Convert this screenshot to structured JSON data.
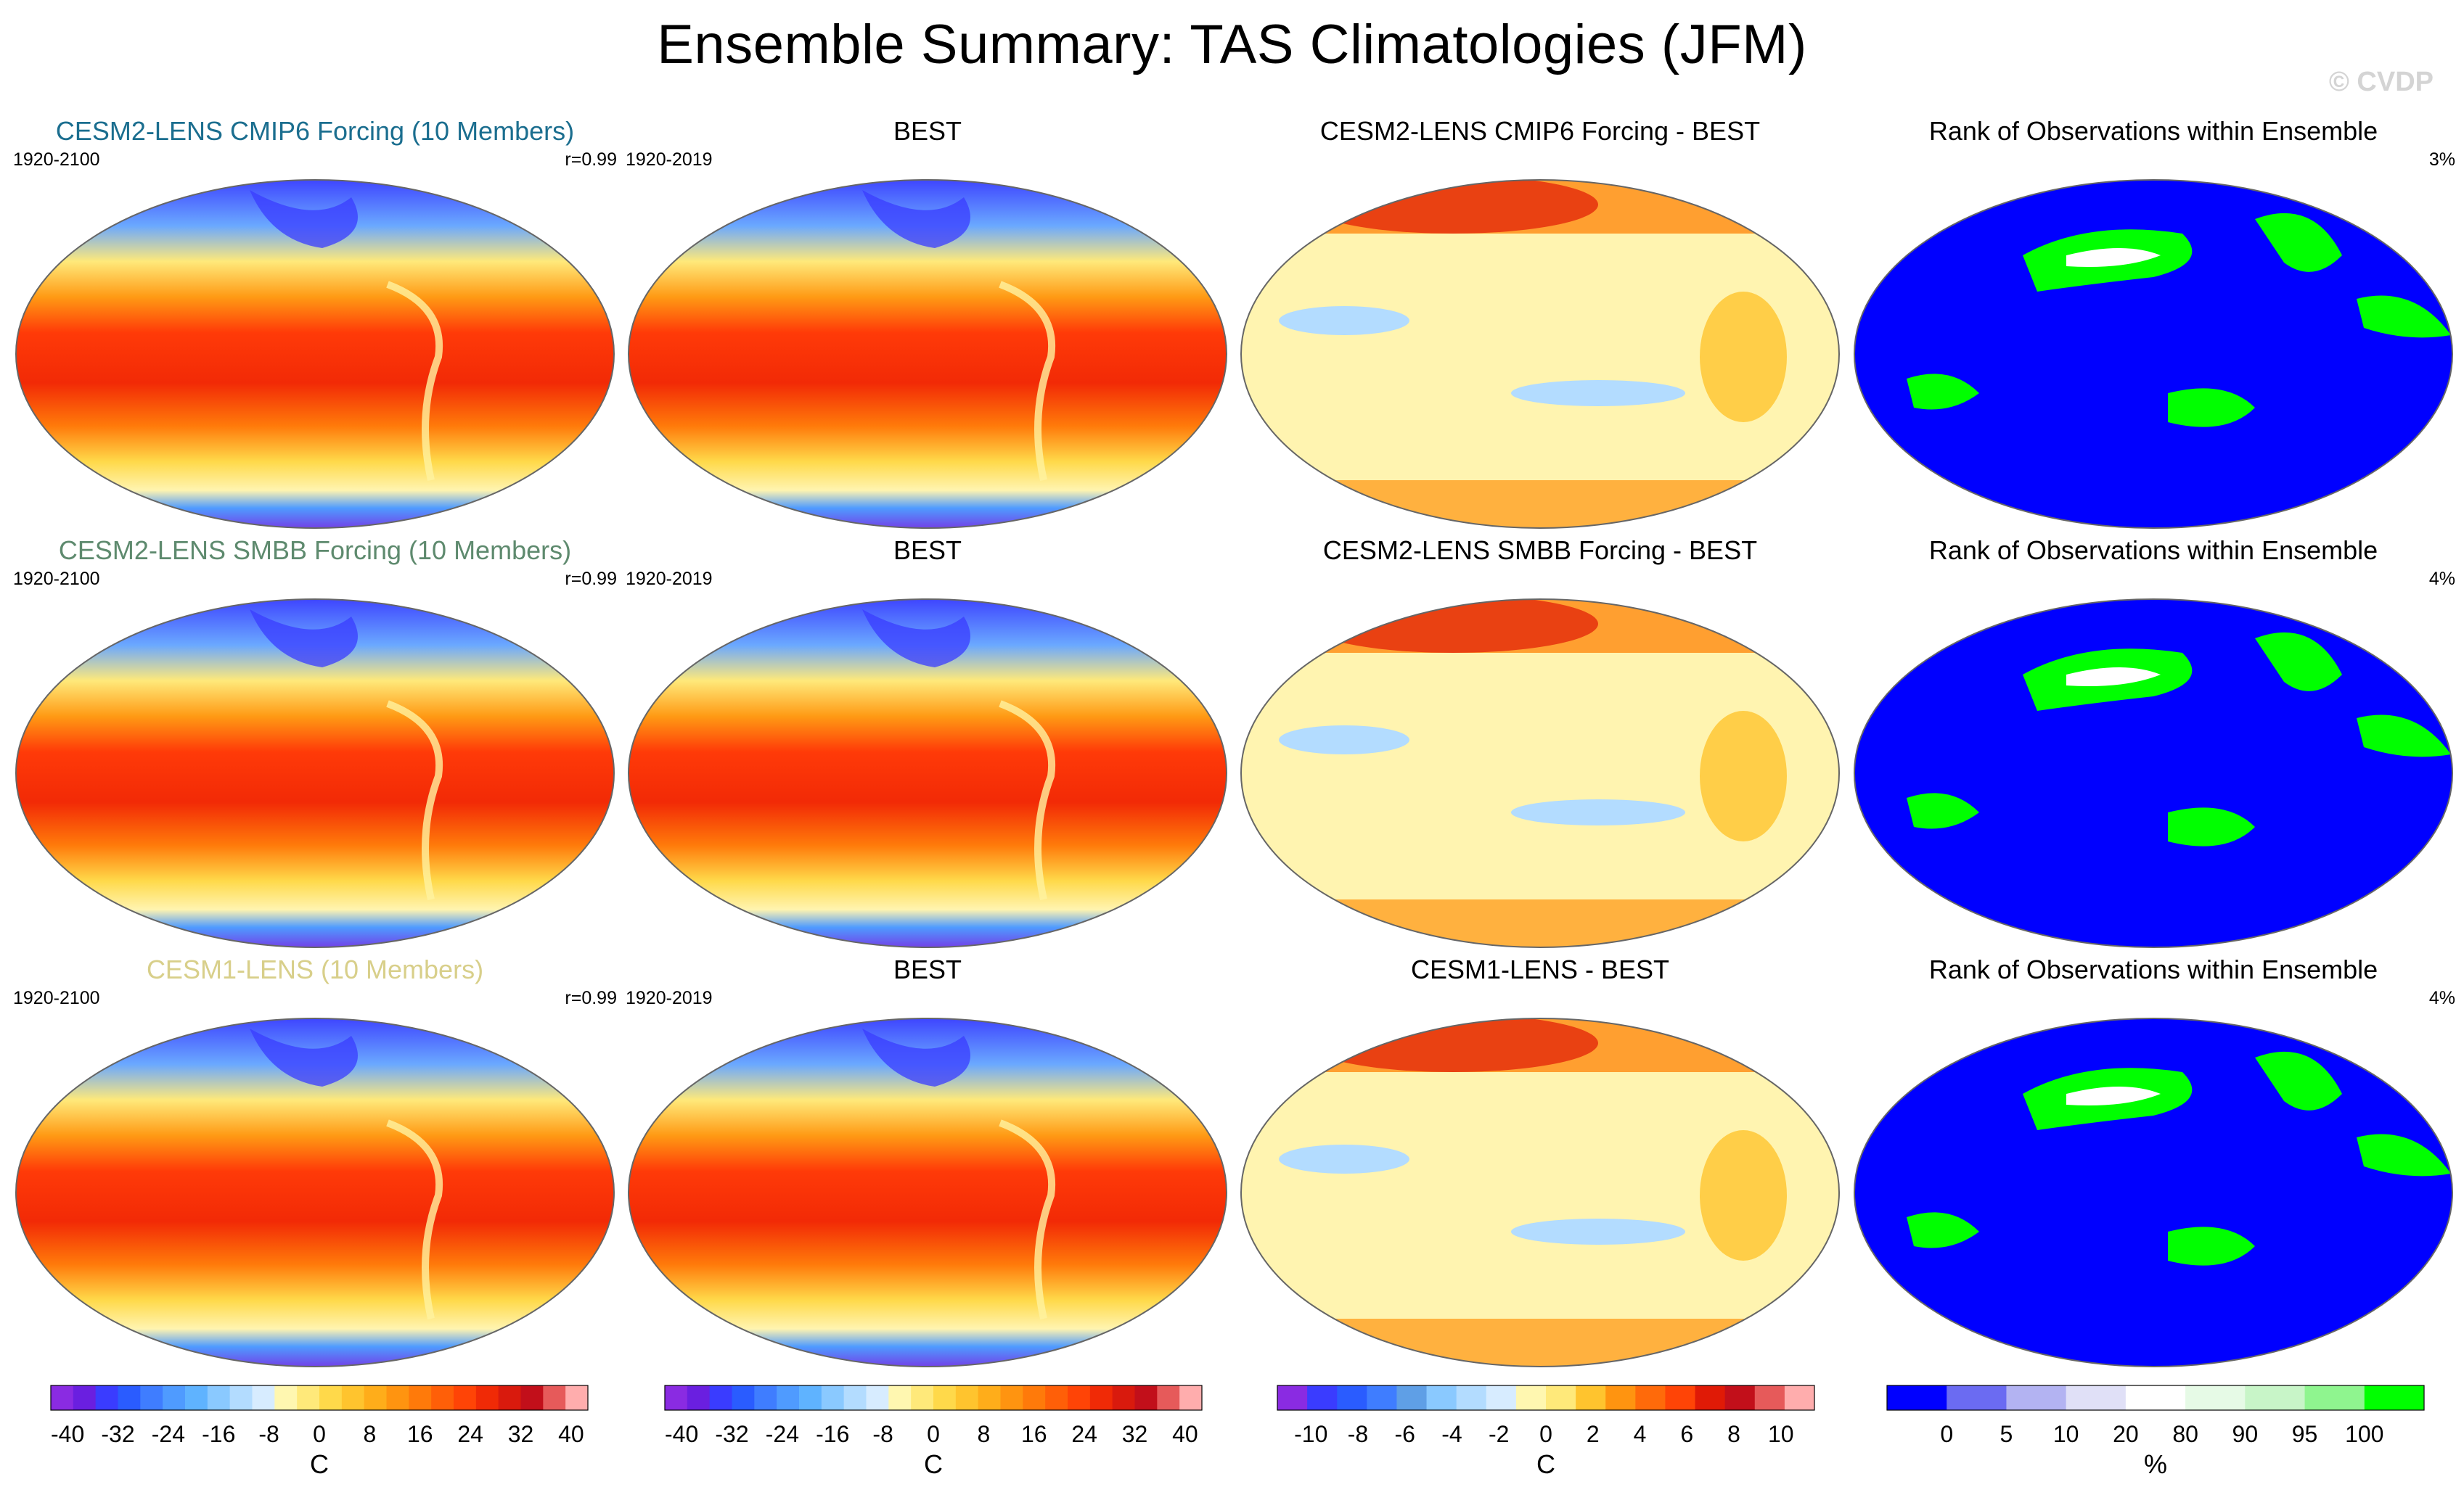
{
  "title": "Ensemble Summary: TAS Climatologies (JFM)",
  "watermark": "© CVDP",
  "rows": [
    {
      "panels": [
        {
          "title": "CESM2-LENS CMIP6 Forcing (10 Members)",
          "title_color": "#1b6e8f",
          "ldate": "1920-2100",
          "rstat": "r=0.99",
          "kind": "clim"
        },
        {
          "title": "BEST",
          "title_color": "#000000",
          "ldate": "1920-2019",
          "rstat": "",
          "kind": "clim"
        },
        {
          "title": "CESM2-LENS CMIP6 Forcing - BEST",
          "title_color": "#000000",
          "ldate": "",
          "rstat": "",
          "kind": "diff"
        },
        {
          "title": "Rank of Observations within Ensemble",
          "title_color": "#000000",
          "ldate": "",
          "rstat": "3%",
          "kind": "rank"
        }
      ]
    },
    {
      "panels": [
        {
          "title": "CESM2-LENS SMBB Forcing (10 Members)",
          "title_color": "#5e8a6e",
          "ldate": "1920-2100",
          "rstat": "r=0.99",
          "kind": "clim"
        },
        {
          "title": "BEST",
          "title_color": "#000000",
          "ldate": "1920-2019",
          "rstat": "",
          "kind": "clim"
        },
        {
          "title": "CESM2-LENS SMBB Forcing - BEST",
          "title_color": "#000000",
          "ldate": "",
          "rstat": "",
          "kind": "diff"
        },
        {
          "title": "Rank of Observations within Ensemble",
          "title_color": "#000000",
          "ldate": "",
          "rstat": "4%",
          "kind": "rank"
        }
      ]
    },
    {
      "panels": [
        {
          "title": "CESM1-LENS (10 Members)",
          "title_color": "#d8cf8a",
          "ldate": "1920-2100",
          "rstat": "r=0.99",
          "kind": "clim"
        },
        {
          "title": "BEST",
          "title_color": "#000000",
          "ldate": "1920-2019",
          "rstat": "",
          "kind": "clim"
        },
        {
          "title": "CESM1-LENS - BEST",
          "title_color": "#000000",
          "ldate": "",
          "rstat": "",
          "kind": "diff"
        },
        {
          "title": "Rank of Observations within Ensemble",
          "title_color": "#000000",
          "ldate": "",
          "rstat": "4%",
          "kind": "rank"
        }
      ]
    }
  ],
  "colorbars": [
    {
      "unit": "C",
      "colors": [
        "#8a2be2",
        "#6a1fe0",
        "#3a3cff",
        "#2a5cff",
        "#3f7dff",
        "#4f9bff",
        "#5fb3ff",
        "#8ac9ff",
        "#b3dcff",
        "#d7ecff",
        "#fff7b0",
        "#ffe97a",
        "#ffd94a",
        "#ffc42e",
        "#ffad1a",
        "#ff9410",
        "#ff7a0a",
        "#ff5f08",
        "#ff4406",
        "#f02a06",
        "#d91a0d",
        "#c20f1a",
        "#e65a5a",
        "#ffadad"
      ],
      "tick_labels": [
        "-40",
        "-32",
        "-24",
        "-16",
        "-8",
        "0",
        "8",
        "16",
        "24",
        "32",
        "40"
      ],
      "tick_positions": [
        1,
        4,
        7,
        10,
        13,
        16,
        19,
        22,
        25,
        28,
        31
      ]
    },
    {
      "unit": "C",
      "colors": [
        "#8a2be2",
        "#6a1fe0",
        "#3a3cff",
        "#2a5cff",
        "#3f7dff",
        "#4f9bff",
        "#5fb3ff",
        "#8ac9ff",
        "#b3dcff",
        "#d7ecff",
        "#fff7b0",
        "#ffe97a",
        "#ffd94a",
        "#ffc42e",
        "#ffad1a",
        "#ff9410",
        "#ff7a0a",
        "#ff5f08",
        "#ff4406",
        "#f02a06",
        "#d91a0d",
        "#c20f1a",
        "#e65a5a",
        "#ffadad"
      ],
      "tick_labels": [
        "-40",
        "-32",
        "-24",
        "-16",
        "-8",
        "0",
        "8",
        "16",
        "24",
        "32",
        "40"
      ],
      "tick_positions": [
        1,
        4,
        7,
        10,
        13,
        16,
        19,
        22,
        25,
        28,
        31
      ]
    },
    {
      "unit": "C",
      "colors": [
        "#8a2be2",
        "#3a3cff",
        "#2a5cff",
        "#3f7dff",
        "#5f9fe6",
        "#8ac9ff",
        "#b3dcff",
        "#d7ecff",
        "#fff7b0",
        "#ffe97a",
        "#ffc42e",
        "#ff9410",
        "#ff6a0a",
        "#ff4406",
        "#e01a06",
        "#c20f1a",
        "#e65a5a",
        "#ffadad"
      ],
      "tick_labels": [
        "-10",
        "-8",
        "-6",
        "-4",
        "-2",
        "0",
        "2",
        "4",
        "6",
        "8",
        "10"
      ],
      "tick_positions": [
        1,
        2.4,
        3.8,
        5.2,
        6.6,
        8,
        9.4,
        10.8,
        12.2,
        13.6,
        15
      ]
    },
    {
      "unit": "%",
      "colors": [
        "#0000ff",
        "#6b6bf2",
        "#b3b3f2",
        "#e0e0f7",
        "#ffffff",
        "#e6fae6",
        "#c8f5c8",
        "#8ff58f",
        "#00ff00"
      ],
      "tick_labels": [
        "0",
        "5",
        "10",
        "20",
        "80",
        "90",
        "95",
        "100"
      ],
      "tick_positions": [
        1,
        2,
        3,
        4,
        5,
        6,
        7,
        8
      ]
    }
  ]
}
